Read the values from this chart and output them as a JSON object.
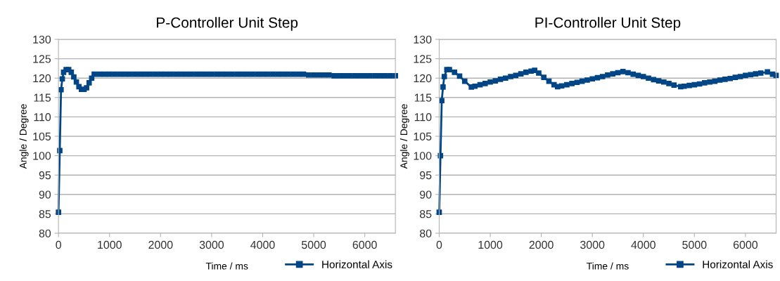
{
  "chart_data": [
    {
      "type": "line",
      "title": "P-Controller Unit Step",
      "xlabel": "Time / ms",
      "ylabel": "Angle / Degree",
      "xlim": [
        0,
        6600
      ],
      "xticks": [
        0,
        1000,
        2000,
        3000,
        4000,
        5000,
        6000
      ],
      "ylim": [
        80,
        130
      ],
      "yticks": [
        80,
        85,
        90,
        95,
        100,
        105,
        110,
        115,
        120,
        125,
        130
      ],
      "grid": "y",
      "legend": "bottom",
      "marker": "square",
      "line_style": "solid",
      "series": [
        {
          "name": "Horizontal Axis",
          "color": "#004586",
          "x": [
            0,
            25,
            50,
            75,
            100,
            150,
            200,
            250,
            300,
            350,
            400,
            450,
            500,
            550,
            600,
            650,
            700,
            800,
            900,
            1000,
            1100,
            1200,
            1300,
            1400,
            1500,
            1600,
            1700,
            1800,
            1900,
            2000,
            2100,
            2200,
            2300,
            2400,
            2500,
            2600,
            2700,
            2800,
            2900,
            3000,
            3100,
            3200,
            3300,
            3400,
            3500,
            3600,
            3700,
            3800,
            3900,
            4000,
            4100,
            4200,
            4300,
            4400,
            4500,
            4600,
            4700,
            4800,
            4900,
            5000,
            5100,
            5200,
            5300,
            5400,
            5500,
            5600,
            5700,
            5800,
            5900,
            6000,
            6100,
            6200,
            6300,
            6400,
            6500,
            6600
          ],
          "values": [
            85.4,
            101.3,
            117,
            119.8,
            121.5,
            122.2,
            122.2,
            121.5,
            120.3,
            119,
            117.8,
            117.1,
            117.1,
            117.5,
            118.8,
            120,
            121,
            121,
            121,
            121,
            121,
            121,
            121,
            121,
            121,
            121,
            121,
            121,
            121,
            121,
            121,
            121,
            121,
            121,
            121,
            121,
            121,
            121,
            121,
            121,
            121,
            121,
            121,
            121,
            121,
            121,
            121,
            121,
            121,
            121,
            121,
            121,
            121,
            121,
            121,
            121,
            121,
            121,
            120.8,
            120.8,
            120.8,
            120.8,
            120.8,
            120.6,
            120.6,
            120.6,
            120.6,
            120.6,
            120.6,
            120.6,
            120.6,
            120.6,
            120.6,
            120.6,
            120.6,
            120.6
          ]
        }
      ]
    },
    {
      "type": "line",
      "title": "PI-Controller Unit Step",
      "xlabel": "Time / ms",
      "ylabel": "Angle / Degree",
      "xlim": [
        0,
        6600
      ],
      "xticks": [
        0,
        1000,
        2000,
        3000,
        4000,
        5000,
        6000
      ],
      "ylim": [
        80,
        130
      ],
      "yticks": [
        80,
        85,
        90,
        95,
        100,
        105,
        110,
        115,
        120,
        125,
        130
      ],
      "grid": "y",
      "legend": "bottom",
      "marker": "square",
      "line_style": "solid",
      "series": [
        {
          "name": "Horizontal Axis",
          "color": "#004586",
          "x": [
            0,
            25,
            50,
            75,
            100,
            150,
            200,
            300,
            400,
            500,
            630,
            700,
            800,
            900,
            1000,
            1100,
            1200,
            1300,
            1400,
            1500,
            1600,
            1700,
            1800,
            1870,
            1950,
            2050,
            2150,
            2250,
            2320,
            2400,
            2500,
            2600,
            2700,
            2800,
            2900,
            3000,
            3100,
            3200,
            3300,
            3400,
            3500,
            3600,
            3700,
            3800,
            3900,
            4000,
            4100,
            4200,
            4300,
            4400,
            4500,
            4600,
            4730,
            4800,
            4900,
            5000,
            5100,
            5200,
            5300,
            5400,
            5500,
            5600,
            5700,
            5800,
            5900,
            6000,
            6100,
            6200,
            6300,
            6430,
            6530,
            6600
          ],
          "values": [
            85.4,
            100,
            114.2,
            117.7,
            120.4,
            122.2,
            122.2,
            121.5,
            120.5,
            119.2,
            117.7,
            117.9,
            118.3,
            118.6,
            119,
            119.3,
            119.7,
            120,
            120.4,
            120.7,
            121.1,
            121.5,
            121.8,
            122,
            121.3,
            120.2,
            119.2,
            118.3,
            117.8,
            118,
            118.3,
            118.6,
            118.9,
            119.2,
            119.5,
            119.8,
            120.1,
            120.4,
            120.8,
            121.1,
            121.4,
            121.7,
            121.4,
            121,
            120.7,
            120.4,
            120,
            119.6,
            119.3,
            119,
            118.6,
            118.2,
            117.8,
            117.9,
            118.1,
            118.3,
            118.5,
            118.8,
            119,
            119.2,
            119.5,
            119.7,
            119.9,
            120.2,
            120.4,
            120.7,
            120.9,
            121.1,
            121.3,
            121.6,
            121,
            120.7
          ]
        }
      ]
    }
  ]
}
